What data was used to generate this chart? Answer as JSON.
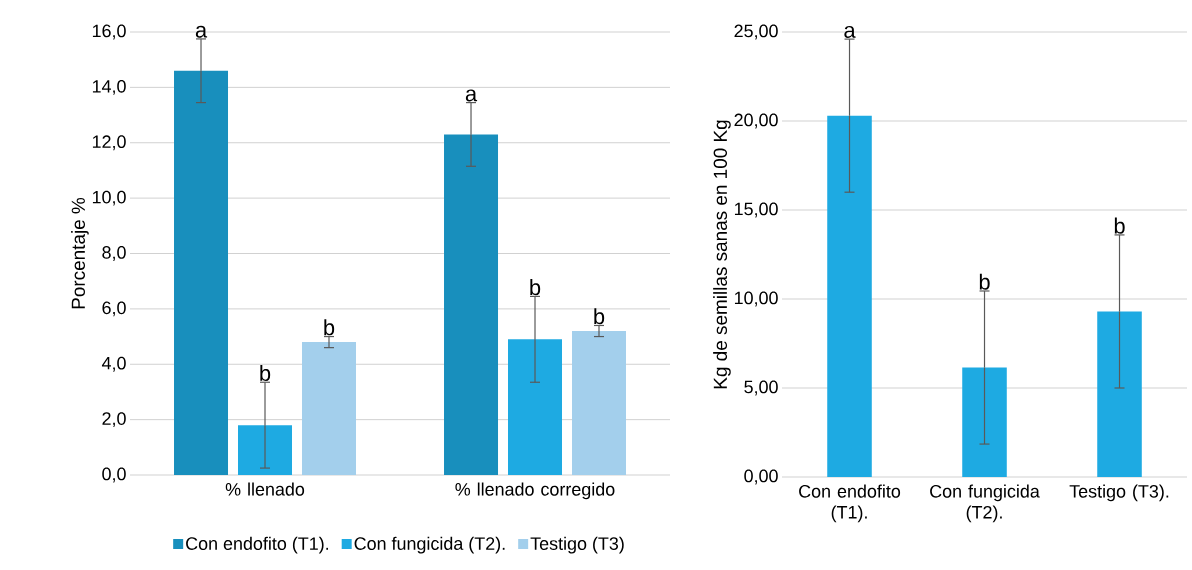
{
  "chart_data": [
    {
      "type": "bar",
      "ylabel": "Porcentaje %",
      "categories": [
        "% llenado",
        "% llenado corregido"
      ],
      "series": [
        {
          "name": "Con endofito (T1).",
          "color": "#188fbd",
          "values": [
            14.6,
            12.3
          ],
          "errors": [
            1.15,
            1.15
          ]
        },
        {
          "name": "Con fungicida (T2).",
          "color": "#1eaae2",
          "values": [
            1.8,
            4.9
          ],
          "errors": [
            1.55,
            1.55
          ]
        },
        {
          "name": "Testigo (T3)",
          "color": "#a3cfec",
          "values": [
            4.8,
            5.2
          ],
          "errors": [
            0.2,
            0.2
          ]
        }
      ],
      "ylim": [
        0,
        16
      ],
      "yticks": [
        {
          "value": 0,
          "label": "0,0"
        },
        {
          "value": 2,
          "label": "2,0"
        },
        {
          "value": 4,
          "label": "4,0"
        },
        {
          "value": 6,
          "label": "6,0"
        },
        {
          "value": 8,
          "label": "8,0"
        },
        {
          "value": 10,
          "label": "10,0"
        },
        {
          "value": 12,
          "label": "12,0"
        },
        {
          "value": 14,
          "label": "14,0"
        },
        {
          "value": 16,
          "label": "16,0"
        }
      ],
      "grid": "y",
      "legend": "bottom",
      "annotations": [
        "a",
        "b",
        "b",
        "a",
        "b",
        "b"
      ]
    },
    {
      "type": "bar",
      "ylabel": "Kg de semillas sanas en 100 Kg",
      "categories": [
        "Con endofito (T1).",
        "Con fungicida (T2).",
        "Testigo (T3)."
      ],
      "series": [
        {
          "color": "#1eaae2",
          "values": [
            20.3,
            6.15,
            9.3
          ],
          "errors": [
            4.3,
            4.3,
            4.3
          ]
        }
      ],
      "ylim": [
        0,
        25
      ],
      "yticks": [
        {
          "value": 0,
          "label": "0,00"
        },
        {
          "value": 5,
          "label": "5,00"
        },
        {
          "value": 10,
          "label": "10,00"
        },
        {
          "value": 15,
          "label": "15,00"
        },
        {
          "value": 20,
          "label": "20,00"
        },
        {
          "value": 25,
          "label": "25,00"
        }
      ],
      "grid": "y",
      "annotations": [
        {
          "text": "a",
          "x": "Con endofito (T1).",
          "y": 24.6
        },
        {
          "text": "b",
          "x": "Con fungicida (T2).",
          "y": 10.45
        },
        {
          "text": "b",
          "x": "Testigo (T3).",
          "y": 13.6
        }
      ]
    }
  ]
}
